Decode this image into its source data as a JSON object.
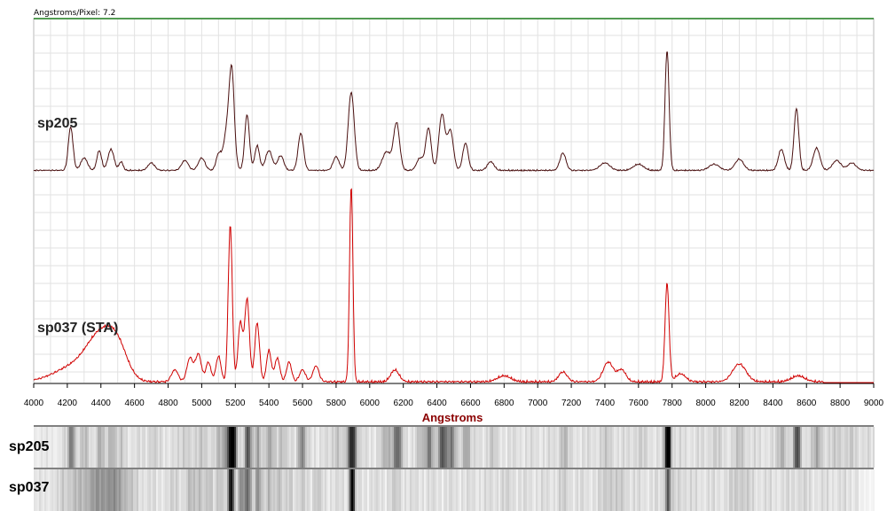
{
  "header": {
    "scale_label": "Angstroms/Pixel: 7.2"
  },
  "strip_labels": [
    "sp205",
    "sp037"
  ],
  "colors": {
    "sp205": "#4a1010",
    "sp037": "#d00000",
    "axis_label": "#8b0000",
    "top_border": "#1a7a1a",
    "grid": "#e2e2e2"
  },
  "chart_data": {
    "type": "line",
    "xlabel": "Angstroms",
    "xlim": [
      4000,
      9000
    ],
    "x_ticks": [
      4000,
      4200,
      4400,
      4600,
      4800,
      5000,
      5200,
      5400,
      5600,
      5800,
      6000,
      6200,
      6400,
      6600,
      6800,
      7000,
      7200,
      7400,
      7600,
      7800,
      8000,
      8200,
      8400,
      8600,
      8800,
      9000
    ],
    "series": [
      {
        "name": "sp205",
        "baseline": 0.0,
        "x_range": [
          4000,
          9000
        ],
        "peaks": [
          [
            4220,
            0.35,
            14
          ],
          [
            4300,
            0.1,
            20
          ],
          [
            4390,
            0.16,
            14
          ],
          [
            4460,
            0.17,
            18
          ],
          [
            4520,
            0.07,
            12
          ],
          [
            4700,
            0.06,
            20
          ],
          [
            4900,
            0.08,
            20
          ],
          [
            5000,
            0.1,
            20
          ],
          [
            5100,
            0.12,
            15
          ],
          [
            5160,
            0.4,
            25
          ],
          [
            5180,
            0.55,
            14
          ],
          [
            5270,
            0.45,
            14
          ],
          [
            5330,
            0.2,
            14
          ],
          [
            5400,
            0.16,
            20
          ],
          [
            5470,
            0.12,
            18
          ],
          [
            5590,
            0.3,
            16
          ],
          [
            5800,
            0.11,
            18
          ],
          [
            5890,
            0.63,
            18
          ],
          [
            6100,
            0.15,
            25
          ],
          [
            6160,
            0.38,
            18
          ],
          [
            6300,
            0.1,
            20
          ],
          [
            6350,
            0.34,
            16
          ],
          [
            6430,
            0.45,
            18
          ],
          [
            6480,
            0.32,
            18
          ],
          [
            6570,
            0.22,
            16
          ],
          [
            6720,
            0.07,
            20
          ],
          [
            7150,
            0.14,
            18
          ],
          [
            7400,
            0.06,
            30
          ],
          [
            7600,
            0.05,
            30
          ],
          [
            7770,
            0.97,
            12
          ],
          [
            8050,
            0.05,
            30
          ],
          [
            8200,
            0.09,
            25
          ],
          [
            8450,
            0.17,
            18
          ],
          [
            8540,
            0.5,
            14
          ],
          [
            8660,
            0.18,
            20
          ],
          [
            8780,
            0.08,
            25
          ],
          [
            8870,
            0.06,
            25
          ]
        ]
      },
      {
        "name": "sp037 (STA)",
        "baseline": 0.0,
        "x_range": [
          4000,
          8700
        ],
        "peaks": [
          [
            4250,
            0.08,
            120
          ],
          [
            4400,
            0.2,
            80
          ],
          [
            4500,
            0.14,
            60
          ],
          [
            4840,
            0.06,
            20
          ],
          [
            4930,
            0.12,
            18
          ],
          [
            4980,
            0.14,
            18
          ],
          [
            5040,
            0.1,
            15
          ],
          [
            5100,
            0.13,
            15
          ],
          [
            5170,
            0.8,
            12
          ],
          [
            5230,
            0.3,
            14
          ],
          [
            5270,
            0.42,
            14
          ],
          [
            5330,
            0.3,
            14
          ],
          [
            5400,
            0.16,
            14
          ],
          [
            5450,
            0.12,
            15
          ],
          [
            5520,
            0.1,
            15
          ],
          [
            5600,
            0.06,
            18
          ],
          [
            5680,
            0.08,
            18
          ],
          [
            5890,
            1.0,
            10
          ],
          [
            6150,
            0.06,
            25
          ],
          [
            6800,
            0.03,
            40
          ],
          [
            7150,
            0.05,
            25
          ],
          [
            7420,
            0.1,
            30
          ],
          [
            7500,
            0.06,
            25
          ],
          [
            7770,
            0.5,
            12
          ],
          [
            7850,
            0.04,
            30
          ],
          [
            8200,
            0.09,
            40
          ],
          [
            8550,
            0.03,
            40
          ]
        ]
      }
    ],
    "legend": "inline"
  }
}
